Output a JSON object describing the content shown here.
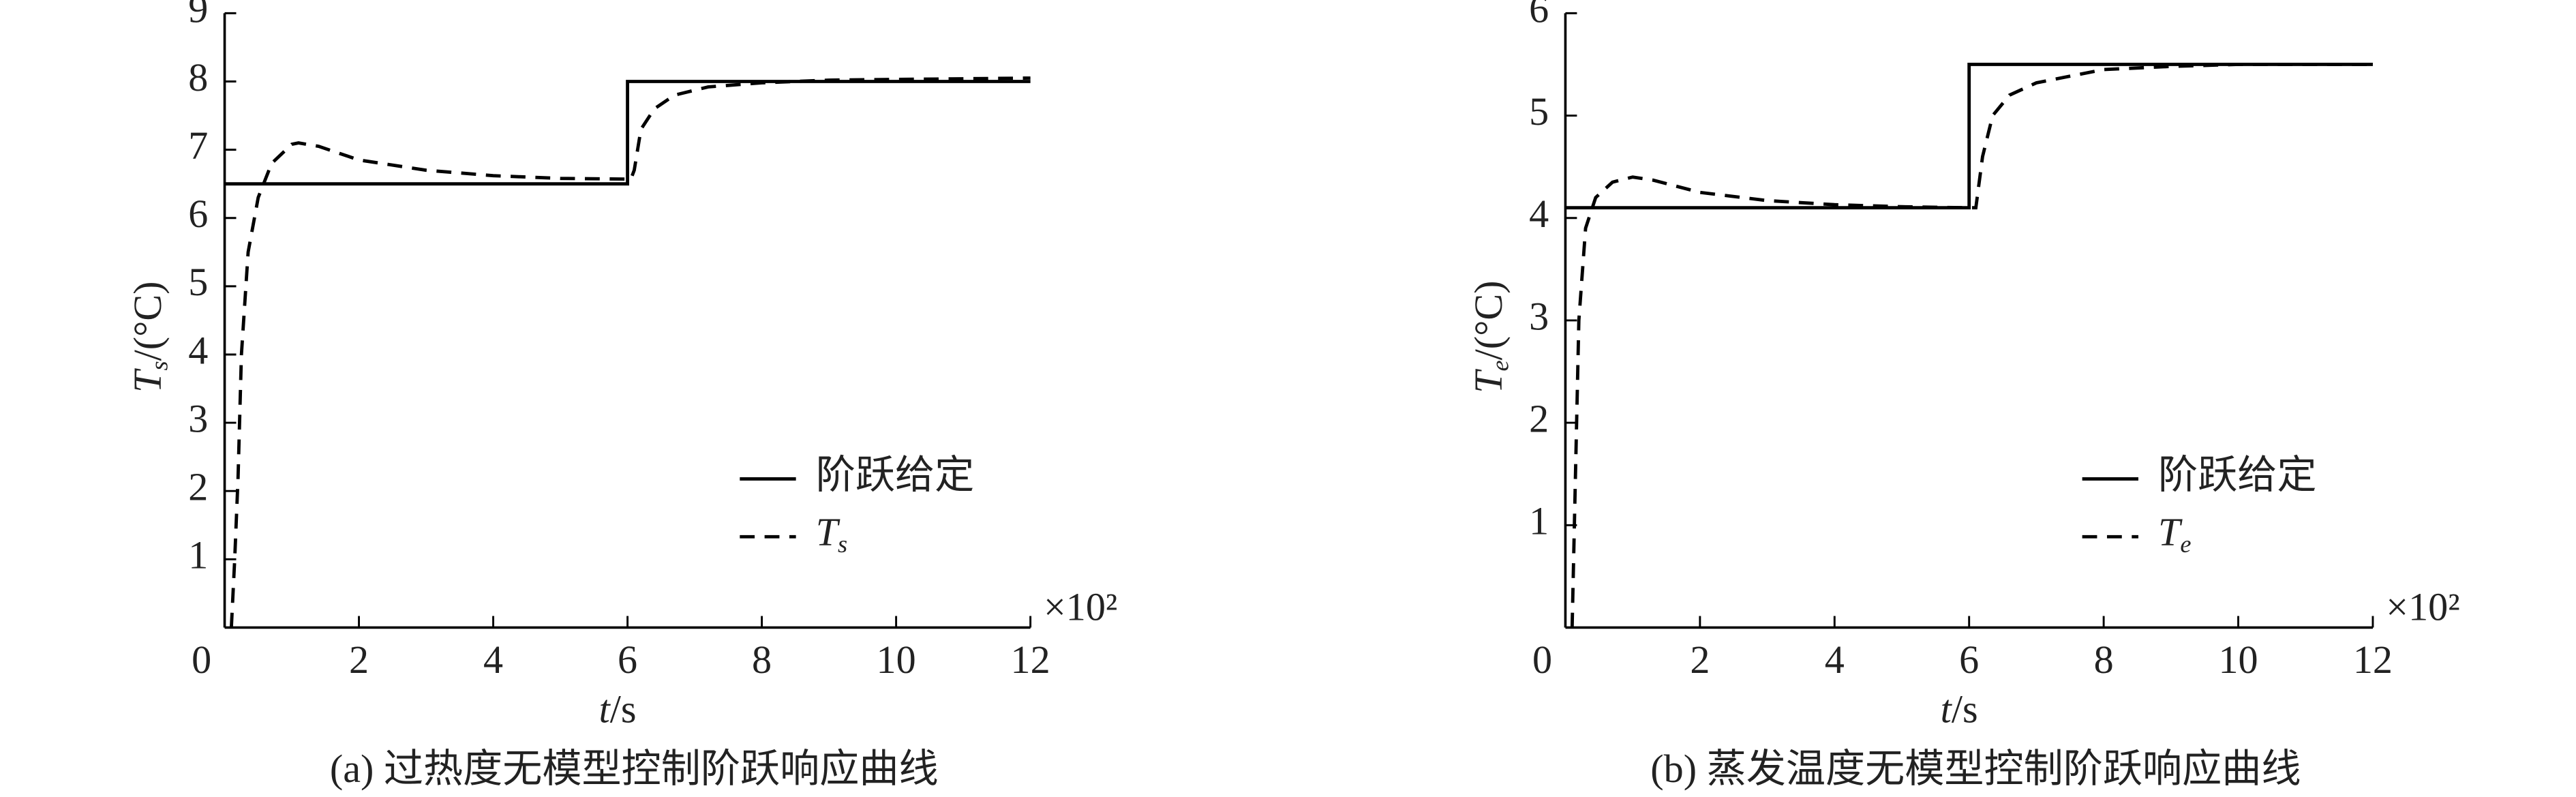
{
  "chart_data": [
    {
      "type": "line",
      "caption": "(a) 过热度无模型控制阶跃响应曲线",
      "xlabel_var": "t",
      "xlabel_unit": "/s",
      "x_multiplier": "×10²",
      "ylabel_var": "T",
      "ylabel_sub": "s",
      "ylabel_unit": "/(°C)",
      "xlim": [
        0,
        12
      ],
      "xticks": [
        0,
        2,
        4,
        6,
        8,
        10,
        12
      ],
      "ylim": [
        0,
        9
      ],
      "yticks": [
        1,
        2,
        3,
        4,
        5,
        6,
        7,
        8,
        9
      ],
      "series": [
        {
          "name": "阶跃给定",
          "color": "#000000",
          "dash": "solid",
          "x": [
            0,
            6,
            6,
            12
          ],
          "values": [
            6.5,
            6.5,
            8,
            8
          ]
        },
        {
          "name": "Ts",
          "color": "#000000",
          "dash": "dashed",
          "x": [
            0.1,
            0.15,
            0.2,
            0.25,
            0.35,
            0.5,
            0.7,
            1.0,
            1.1,
            1.4,
            2,
            3,
            4,
            5,
            6,
            6.05,
            6.1,
            6.2,
            6.4,
            6.7,
            7.2,
            8,
            9,
            10,
            12
          ],
          "values": [
            0,
            1,
            2.2,
            4,
            5.5,
            6.3,
            6.8,
            7.08,
            7.1,
            7.05,
            6.85,
            6.7,
            6.62,
            6.58,
            6.57,
            6.57,
            6.7,
            7.3,
            7.6,
            7.8,
            7.92,
            7.98,
            8.02,
            8.03,
            8.05
          ]
        }
      ]
    },
    {
      "type": "line",
      "caption": "(b) 蒸发温度无模型控制阶跃响应曲线",
      "xlabel_var": "t",
      "xlabel_unit": "/s",
      "x_multiplier": "×10²",
      "ylabel_var": "T",
      "ylabel_sub": "e",
      "ylabel_unit": "/(°C)",
      "xlim": [
        0,
        12
      ],
      "xticks": [
        0,
        2,
        4,
        6,
        8,
        10,
        12
      ],
      "ylim": [
        0,
        6
      ],
      "yticks": [
        1,
        2,
        3,
        4,
        5,
        6
      ],
      "series": [
        {
          "name": "阶跃给定",
          "color": "#000000",
          "dash": "solid",
          "x": [
            0,
            6,
            6,
            12
          ],
          "values": [
            4.1,
            4.1,
            5.5,
            5.5
          ]
        },
        {
          "name": "Te",
          "color": "#000000",
          "dash": "dashed",
          "x": [
            0.1,
            0.15,
            0.2,
            0.3,
            0.45,
            0.7,
            1.0,
            1.3,
            2,
            3,
            4,
            5,
            6,
            6.1,
            6.2,
            6.35,
            6.6,
            7,
            8,
            9,
            10,
            12
          ],
          "values": [
            0,
            1.5,
            3,
            3.9,
            4.2,
            4.35,
            4.4,
            4.37,
            4.25,
            4.17,
            4.13,
            4.11,
            4.1,
            4.1,
            4.6,
            5.0,
            5.2,
            5.32,
            5.45,
            5.48,
            5.5,
            5.5
          ]
        }
      ]
    }
  ]
}
